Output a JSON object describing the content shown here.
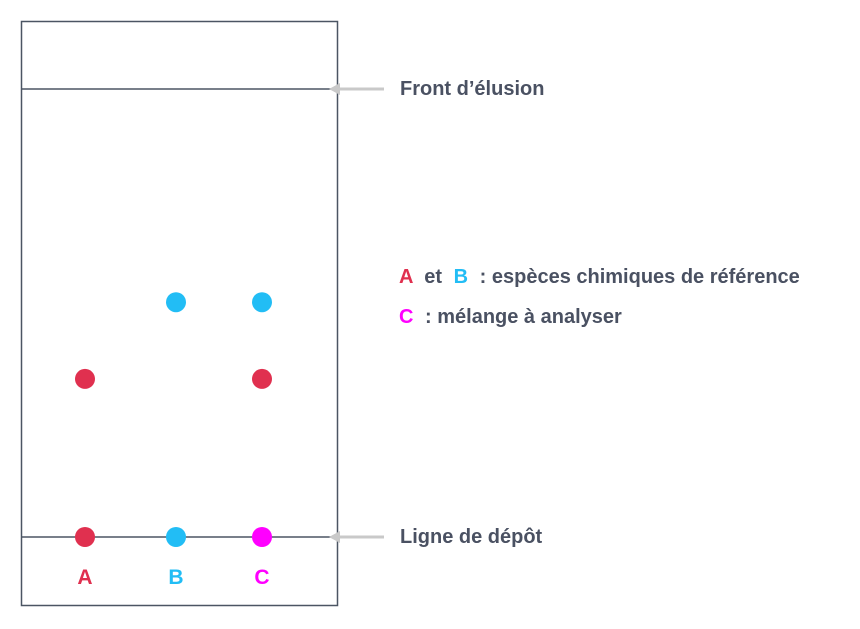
{
  "colors": {
    "frame": "#4b5563",
    "text": "#4a5162",
    "arrow": "#c9c9c9",
    "A": "#e0304f",
    "B": "#22bdf5",
    "C": "#ff00ff"
  },
  "labels": {
    "front": "Front d’élusion",
    "depot": "Ligne de dépôt"
  },
  "legend": {
    "line1": {
      "a": "A",
      "et": "et",
      "b": "B",
      "rest": ": espèces chimiques de référence"
    },
    "line2": {
      "c": "C",
      "rest": ": mélange à analyser"
    }
  },
  "lanes": [
    {
      "id": "A",
      "label": "A",
      "color": "#e0304f",
      "spots": [
        {
          "rf": 0.353,
          "color": "#e0304f"
        }
      ]
    },
    {
      "id": "B",
      "label": "B",
      "color": "#22bdf5",
      "spots": [
        {
          "rf": 0.524,
          "color": "#22bdf5"
        }
      ]
    },
    {
      "id": "C",
      "label": "C",
      "color": "#ff00ff",
      "spots": [
        {
          "rf": 0.524,
          "color": "#22bdf5"
        },
        {
          "rf": 0.353,
          "color": "#e0304f"
        }
      ]
    }
  ]
}
